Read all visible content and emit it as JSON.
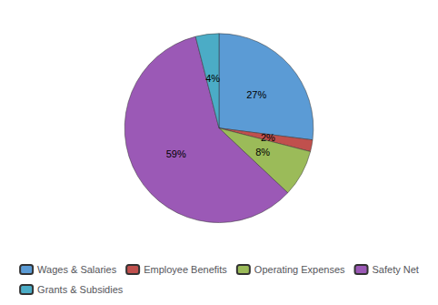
{
  "chart_data": {
    "type": "pie",
    "categories": [
      "Wages & Salaries",
      "Employee Benefits",
      "Operating Expenses",
      "Safety Net",
      "Grants & Subsidies"
    ],
    "values": [
      27,
      2,
      8,
      59,
      4
    ],
    "value_labels": [
      "27%",
      "2%",
      "8%",
      "59%",
      "4%"
    ],
    "colors": [
      "#5B9BD5",
      "#C0504D",
      "#9BBB59",
      "#9B59B6",
      "#4BACC6"
    ],
    "data_labels": true,
    "legend": "bottom"
  }
}
